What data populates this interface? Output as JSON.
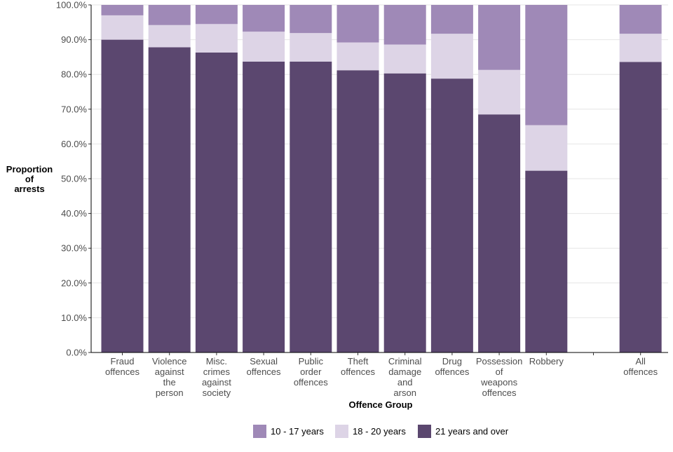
{
  "chart_data": {
    "type": "bar",
    "stacked": true,
    "xlabel": "Offence Group",
    "ylabel": [
      "Proportion",
      "of",
      "arrests"
    ],
    "ylim": [
      0,
      100
    ],
    "yticks": [
      "0.0%",
      "10.0%",
      "20.0%",
      "30.0%",
      "40.0%",
      "50.0%",
      "60.0%",
      "70.0%",
      "80.0%",
      "90.0%",
      "100.0%"
    ],
    "grid": true,
    "legend_position": "bottom",
    "categories": [
      [
        "Fraud",
        "offences"
      ],
      [
        "Violence",
        "against",
        "the",
        "person"
      ],
      [
        "Misc.",
        "crimes",
        "against",
        "society"
      ],
      [
        "Sexual",
        "offences"
      ],
      [
        "Public",
        "order",
        "offences"
      ],
      [
        "Theft",
        "offences"
      ],
      [
        "Criminal",
        "damage",
        "and",
        "arson"
      ],
      [
        "Drug",
        "offences"
      ],
      [
        "Possession",
        "of",
        "weapons",
        "offences"
      ],
      [
        "Robbery"
      ],
      [
        "All",
        "offences"
      ]
    ],
    "series": [
      {
        "name": "21 years and over",
        "color": "#5b476f",
        "values": [
          90.0,
          87.8,
          86.3,
          83.7,
          83.7,
          81.2,
          80.3,
          78.8,
          68.5,
          52.3,
          83.6
        ]
      },
      {
        "name": "18 - 20 years",
        "color": "#ddd4e6",
        "values": [
          7.0,
          6.4,
          8.2,
          8.6,
          8.2,
          8.0,
          8.3,
          12.9,
          12.8,
          13.1,
          8.1
        ]
      },
      {
        "name": "10 - 17 years",
        "color": "#9f89b7",
        "values": [
          3.0,
          5.8,
          5.5,
          7.7,
          8.1,
          10.8,
          11.4,
          8.3,
          18.7,
          34.6,
          8.3
        ]
      }
    ],
    "legend_order": [
      2,
      1,
      0
    ]
  }
}
